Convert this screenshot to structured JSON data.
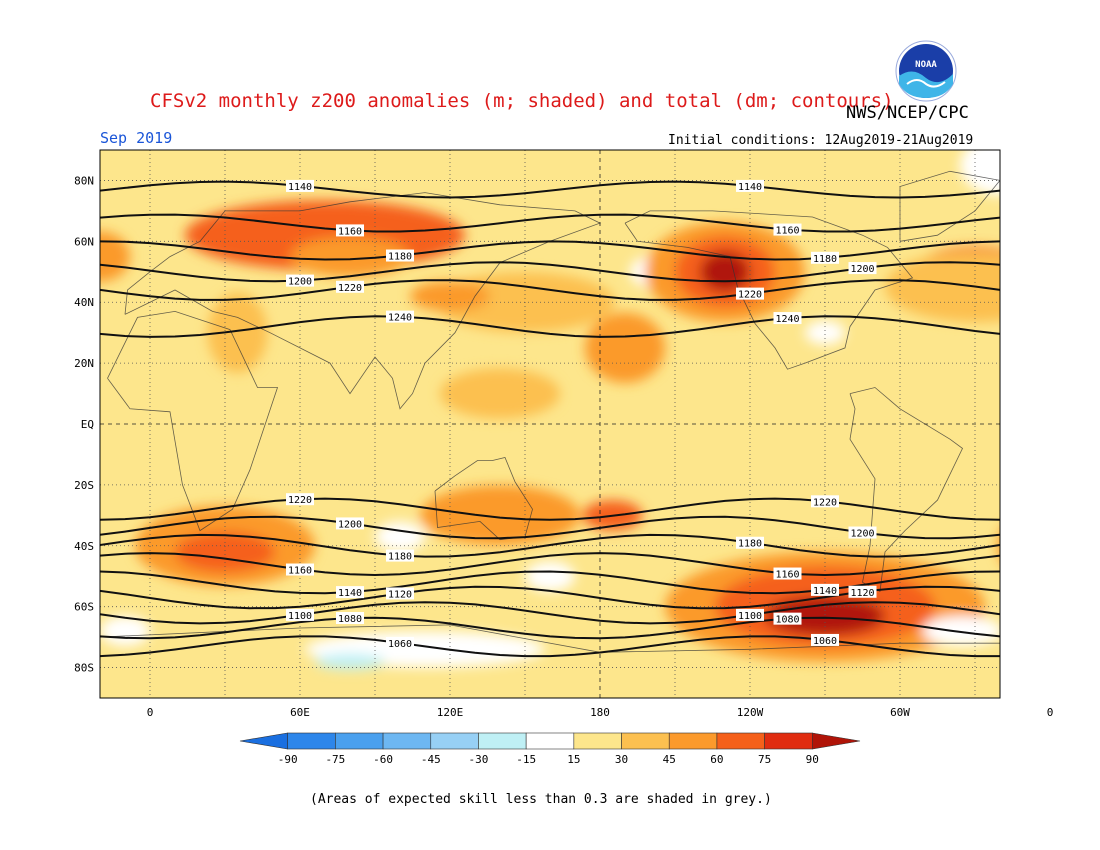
{
  "header": {
    "title": "CFSv2 monthly z200 anomalies (m; shaded) and total (dm; contours)",
    "org": "NWS/NCEP/CPC",
    "month": "Sep 2019",
    "initial_conditions": "Initial conditions: 12Aug2019-21Aug2019",
    "logo_text": "NOAA"
  },
  "map": {
    "lat_labels": [
      "80N",
      "60N",
      "40N",
      "20N",
      "EQ",
      "20S",
      "40S",
      "60S",
      "80S"
    ],
    "lon_labels": [
      "0",
      "60E",
      "120E",
      "180",
      "120W",
      "60W",
      "0"
    ],
    "contour_labels": [
      "1060",
      "1080",
      "1100",
      "1120",
      "1140",
      "1160",
      "1180",
      "1200",
      "1220",
      "1240"
    ],
    "contours_dm": [
      {
        "label": "1140",
        "lat": 77
      },
      {
        "label": "1160",
        "lat": 66
      },
      {
        "label": "1180",
        "lat": 57
      },
      {
        "label": "1200",
        "lat": 50
      },
      {
        "label": "1220",
        "lat": 44
      },
      {
        "label": "1240",
        "lat": 32
      },
      {
        "label": "1220",
        "lat": -28
      },
      {
        "label": "1200",
        "lat": -34
      },
      {
        "label": "1180",
        "lat": -40
      },
      {
        "label": "1160",
        "lat": -46
      },
      {
        "label": "1140",
        "lat": -52
      },
      {
        "label": "1120",
        "lat": -57
      },
      {
        "label": "1100",
        "lat": -62
      },
      {
        "label": "1080",
        "lat": -67
      },
      {
        "label": "1060",
        "lat": -73
      }
    ],
    "anomaly_centers": [
      {
        "lon": -130,
        "lat": 50,
        "value": 90
      },
      {
        "lon": -90,
        "lat": -62,
        "value": 90
      },
      {
        "lon": 70,
        "lat": 62,
        "value": 60
      },
      {
        "lon": -30,
        "lat": 50,
        "value": 60
      },
      {
        "lon": 30,
        "lat": -40,
        "value": 60
      },
      {
        "lon": 140,
        "lat": -30,
        "value": 60
      },
      {
        "lon": 110,
        "lat": -60,
        "value": -15
      },
      {
        "lon": 80,
        "lat": -78,
        "value": -30
      }
    ]
  },
  "colorbar": {
    "ticks": [
      "-90",
      "-75",
      "-60",
      "-45",
      "-30",
      "-15",
      "15",
      "30",
      "45",
      "60",
      "75",
      "90"
    ],
    "colors": [
      "#1a6fe0",
      "#2d86ea",
      "#4aa0ee",
      "#6db7f2",
      "#97d0f5",
      "#bff0f5",
      "#ffffff",
      "#fde68c",
      "#fcc050",
      "#fb9a2c",
      "#f5601a",
      "#e02c10",
      "#b01408"
    ]
  },
  "footnote": "(Areas of expected skill less than 0.3 are shaded in grey.)"
}
